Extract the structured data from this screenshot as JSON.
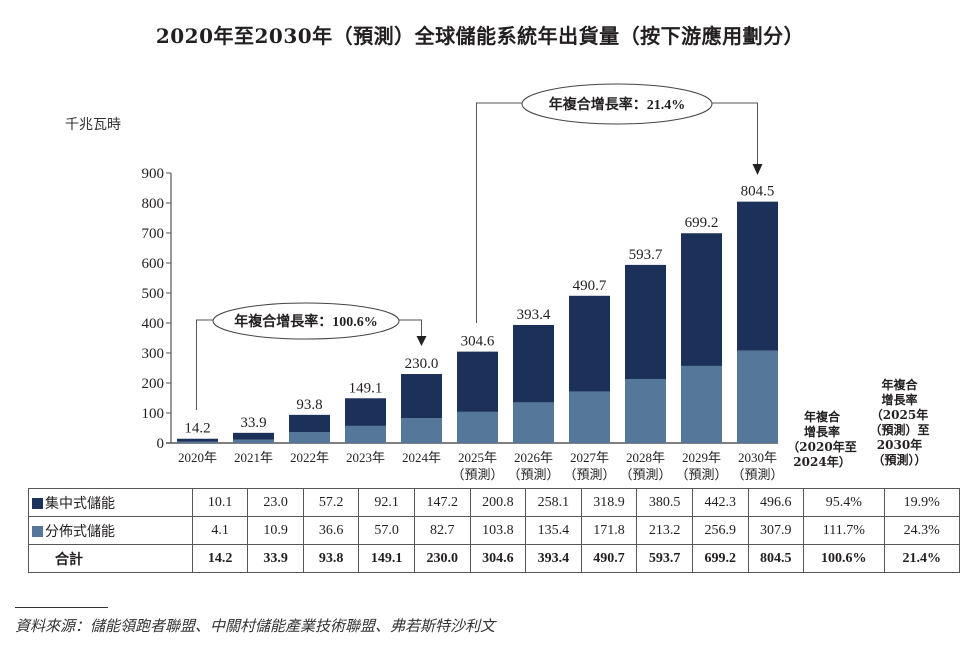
{
  "title": "2020年至2030年（預測）全球儲能系統年出貨量（按下游應用劃分）",
  "unit_label": "千兆瓦時",
  "colors": {
    "centralized": "#1b3159",
    "distributed": "#557799",
    "axis": "#555555"
  },
  "chart_data": {
    "type": "bar",
    "stacked": true,
    "title": "2020年至2030年（預測）全球儲能系統年出貨量（按下游應用劃分）",
    "ylabel": "千兆瓦時",
    "xlabel": "",
    "ylim": [
      0,
      900
    ],
    "yticks": [
      0,
      100,
      200,
      300,
      400,
      500,
      600,
      700,
      800,
      900
    ],
    "categories": [
      "2020年",
      "2021年",
      "2022年",
      "2023年",
      "2024年",
      "2025年",
      "2026年",
      "2027年",
      "2028年",
      "2029年",
      "2030年"
    ],
    "category_sublabels": [
      "",
      "",
      "",
      "",
      "",
      "（預測）",
      "（預測）",
      "（預測）",
      "（預測）",
      "（預測）",
      "（預測）"
    ],
    "series": [
      {
        "name": "分佈式儲能",
        "values": [
          4.1,
          10.9,
          36.6,
          57.0,
          82.7,
          103.8,
          135.4,
          171.8,
          213.2,
          256.9,
          307.9
        ]
      },
      {
        "name": "集中式儲能",
        "values": [
          10.1,
          23.0,
          57.2,
          92.1,
          147.2,
          200.8,
          258.1,
          318.9,
          380.5,
          442.3,
          496.6
        ]
      }
    ],
    "totals": [
      14.2,
      33.9,
      93.8,
      149.1,
      230.0,
      304.6,
      393.4,
      490.7,
      593.7,
      699.2,
      804.5
    ],
    "total_labels": [
      "14.2",
      "33.9",
      "93.8",
      "149.1",
      "230.0",
      "304.6",
      "393.4",
      "490.7",
      "593.7",
      "699.2",
      "804.5"
    ],
    "annotations": [
      {
        "text": "年複合增長率：100.6%",
        "from": "2020年",
        "to": "2024年"
      },
      {
        "text": "年複合增長率：21.4%",
        "from": "2025年",
        "to": "2030年"
      }
    ],
    "grid": false,
    "legend": "table-below"
  },
  "table": {
    "cagr_header_1": [
      "年複合",
      "增長率",
      "（2020年至",
      "2024年）"
    ],
    "cagr_header_2": [
      "年複合",
      "增長率",
      "（2025年",
      "（預測）至",
      "2030年",
      "（預測））"
    ],
    "rows": [
      {
        "label": "集中式儲能",
        "swatch": "centralized",
        "values": [
          "10.1",
          "23.0",
          "57.2",
          "92.1",
          "147.2",
          "200.8",
          "258.1",
          "318.9",
          "380.5",
          "442.3",
          "496.6"
        ],
        "cagr1": "95.4%",
        "cagr2": "19.9%"
      },
      {
        "label": "分佈式儲能",
        "swatch": "distributed",
        "values": [
          "4.1",
          "10.9",
          "36.6",
          "57.0",
          "82.7",
          "103.8",
          "135.4",
          "171.8",
          "213.2",
          "256.9",
          "307.9"
        ],
        "cagr1": "111.7%",
        "cagr2": "24.3%"
      },
      {
        "label": "合計",
        "swatch": null,
        "values": [
          "14.2",
          "33.9",
          "93.8",
          "149.1",
          "230.0",
          "304.6",
          "393.4",
          "490.7",
          "593.7",
          "699.2",
          "804.5"
        ],
        "cagr1": "100.6%",
        "cagr2": "21.4%"
      }
    ]
  },
  "source": "資料來源：儲能領跑者聯盟、中關村儲能產業技術聯盟、弗若斯特沙利文"
}
